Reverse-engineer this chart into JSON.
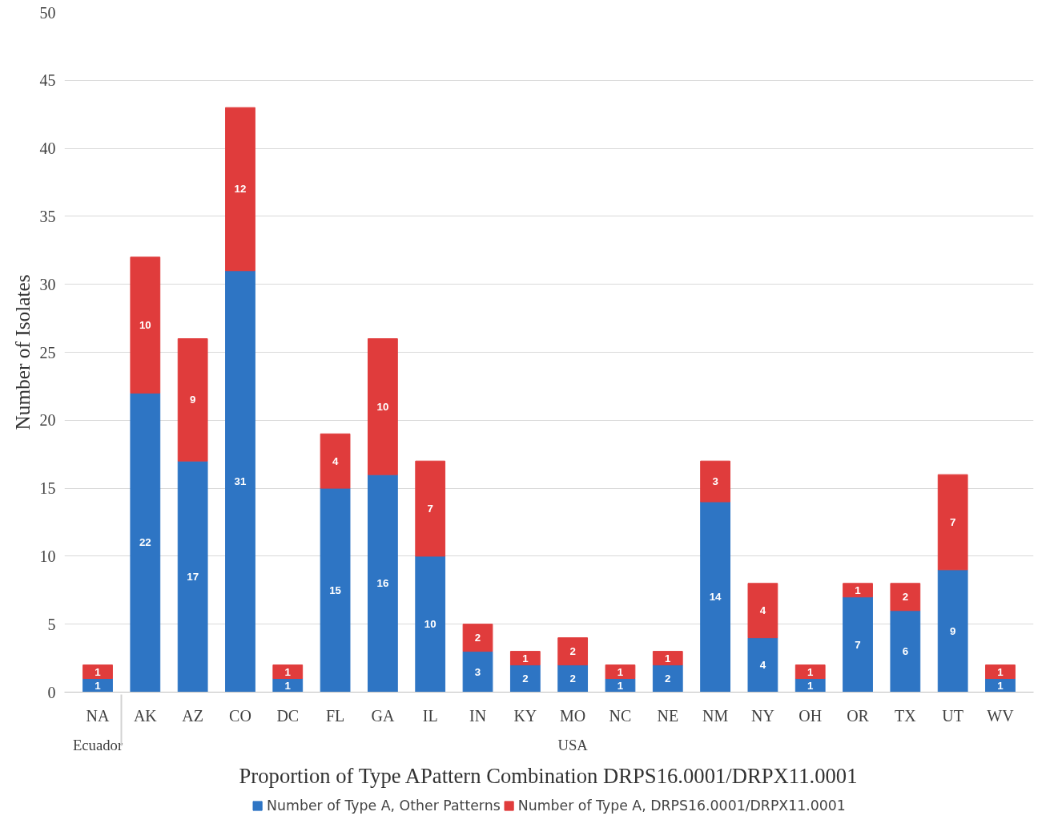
{
  "chart_data": {
    "type": "bar",
    "stacked": true,
    "xlabel": "Proportion of Type APattern Combination DRPS16.0001/DRPX11.0001",
    "ylabel": "Number of Isolates",
    "categories": [
      "NA",
      "AK",
      "AZ",
      "CO",
      "DC",
      "FL",
      "GA",
      "IL",
      "IN",
      "KY",
      "MO",
      "NC",
      "NE",
      "NM",
      "NY",
      "OH",
      "OR",
      "TX",
      "UT",
      "WV"
    ],
    "series": [
      {
        "name": "Number of Type A, Other Patterns",
        "color": "#2e75c4",
        "values": [
          1,
          22,
          17,
          31,
          1,
          15,
          16,
          10,
          3,
          2,
          2,
          1,
          2,
          14,
          4,
          1,
          7,
          6,
          9,
          1
        ]
      },
      {
        "name": "Number of Type A, DRPS16.0001/DRPX11.0001",
        "color": "#e03c3c",
        "values": [
          1,
          10,
          9,
          12,
          1,
          4,
          10,
          7,
          2,
          1,
          2,
          1,
          1,
          3,
          4,
          1,
          1,
          2,
          7,
          1
        ]
      }
    ],
    "ylim": [
      0,
      50
    ],
    "yticks": [
      0,
      5,
      10,
      15,
      20,
      25,
      30,
      35,
      40,
      45,
      50
    ],
    "grid": "y",
    "legend": "bottom",
    "data_labels": true,
    "annotations": [
      "Ecuador",
      "USA"
    ]
  }
}
